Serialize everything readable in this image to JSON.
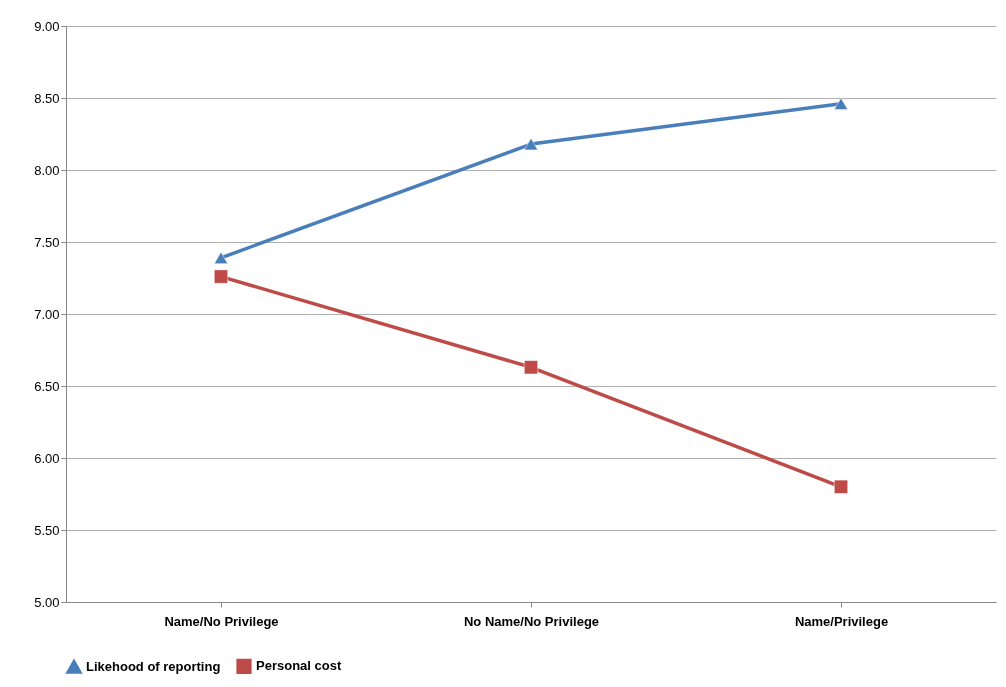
{
  "chart_data": {
    "type": "line",
    "categories": [
      "Name/No Privilege",
      "No Name/No Privilege",
      "Name/Privilege"
    ],
    "series": [
      {
        "name": "Likehood of reporting",
        "color": "#4a7ebb",
        "marker": "triangle",
        "values": [
          7.39,
          8.18,
          8.46
        ]
      },
      {
        "name": "Personal cost",
        "color": "#be4b48",
        "marker": "square",
        "values": [
          7.26,
          6.63,
          5.8
        ]
      }
    ],
    "ylim": [
      5,
      9
    ],
    "yticks": [
      {
        "value": 5,
        "label": "5.00"
      },
      {
        "value": 5.5,
        "label": "5.50"
      },
      {
        "value": 6,
        "label": "6.00"
      },
      {
        "value": 6.5,
        "label": "6.50"
      },
      {
        "value": 7,
        "label": "7.00"
      },
      {
        "value": 7.5,
        "label": "7.50"
      },
      {
        "value": 8,
        "label": "8.00"
      },
      {
        "value": 8.5,
        "label": "8.50"
      },
      {
        "value": 9,
        "label": "9.00"
      }
    ],
    "grid": "y",
    "legend": "bottom",
    "line_style": "solid"
  }
}
